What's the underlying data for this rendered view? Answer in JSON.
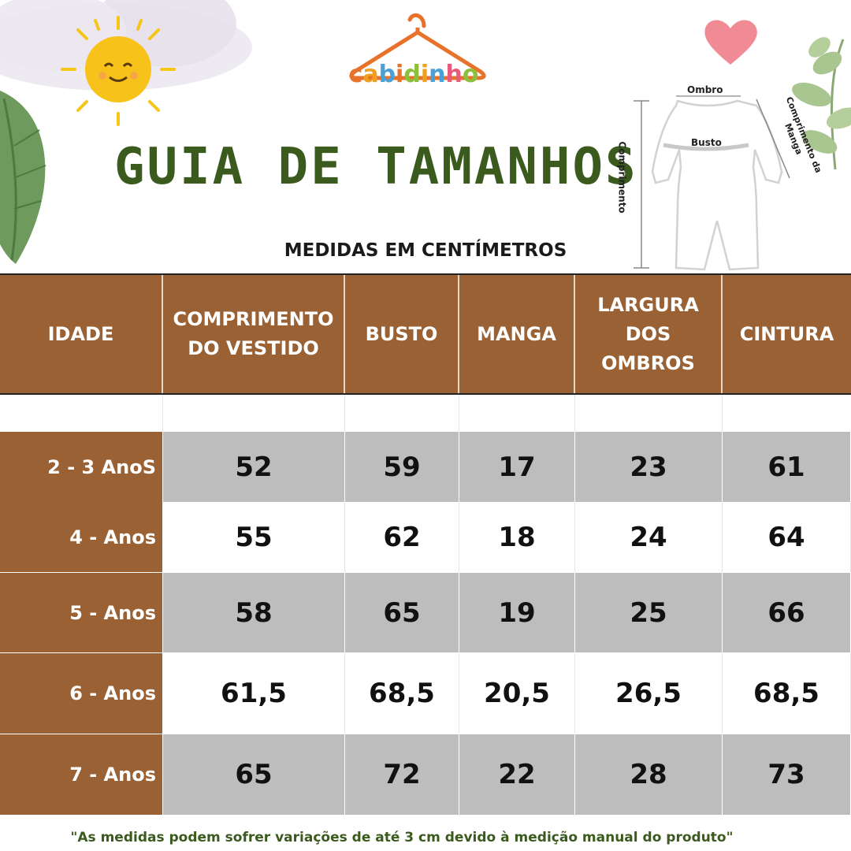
{
  "brand": {
    "name_letters": [
      "c",
      "a",
      "b",
      "i",
      "d",
      "i",
      "n",
      "h",
      "o"
    ],
    "letter_colors": [
      "#e8722a",
      "#f0a020",
      "#4aa0d8",
      "#e8722a",
      "#8dbf3c",
      "#f0a020",
      "#4aa0d8",
      "#e85a7a",
      "#8dbf3c"
    ],
    "hanger_color": "#e8722a"
  },
  "title": "GUIA DE TAMANHOS",
  "subtitle": "MEDIDAS EM CENTÍMETROS",
  "diagram": {
    "labels": {
      "ombro": "Ombro",
      "busto": "Busto",
      "comprimento": "Comprimento",
      "comprimento_manga": "Comprimento da Manga"
    }
  },
  "table": {
    "headers": [
      [
        "IDADE"
      ],
      [
        "COMPRIMENTO",
        "DO VESTIDO"
      ],
      [
        "BUSTO"
      ],
      [
        "MANGA"
      ],
      [
        "LARGURA",
        "DOS",
        "OMBROS"
      ],
      [
        "CINTURA"
      ]
    ],
    "rows": [
      {
        "age": "2 - 3 AnoS",
        "values": [
          "52",
          "59",
          "17",
          "23",
          "61"
        ]
      },
      {
        "age": "4 - Anos",
        "values": [
          "55",
          "62",
          "18",
          "24",
          "64"
        ]
      },
      {
        "age": "5 - Anos",
        "values": [
          "58",
          "65",
          "19",
          "25",
          "66"
        ]
      },
      {
        "age": "6 - Anos",
        "values": [
          "61,5",
          "68,5",
          "20,5",
          "26,5",
          "68,5"
        ]
      },
      {
        "age": "7 - Anos",
        "values": [
          "65",
          "72",
          "22",
          "28",
          "73"
        ]
      }
    ]
  },
  "footnote": "\"As medidas podem sofrer variações de até 3 cm devido à medição manual do produto\"",
  "colors": {
    "header_brown": "#9a6234",
    "title_green": "#3b5a1e",
    "row_gray": "#bdbdbd"
  }
}
